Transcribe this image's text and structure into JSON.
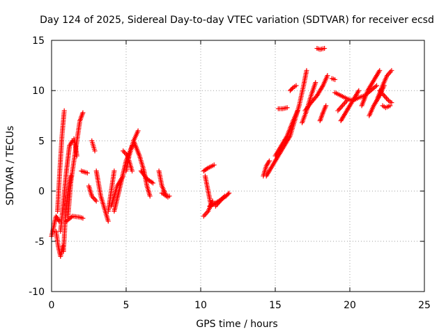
{
  "chart_data": {
    "type": "scatter",
    "title": "Day 124 of 2025, Sidereal Day-to-day VTEC variation (SDTVAR) for receiver ecsd",
    "xlabel": "GPS time / hours",
    "ylabel": "SDTVAR / TECUs",
    "xlim": [
      0,
      25
    ],
    "ylim": [
      -10,
      15
    ],
    "xticks": [
      0,
      5,
      10,
      15,
      20,
      25
    ],
    "yticks": [
      -10,
      -5,
      0,
      5,
      10,
      15
    ],
    "grid": true,
    "marker": "plus",
    "color": "#ff0000",
    "tracks": [
      {
        "x": [
          0.0,
          0.15,
          0.3,
          0.5
        ],
        "y": [
          -4.5,
          -3.5,
          -2.5,
          -3.0
        ]
      },
      {
        "x": [
          0.3,
          0.45,
          0.6,
          0.75
        ],
        "y": [
          -4.0,
          -5.5,
          -6.5,
          -5.5
        ]
      },
      {
        "x": [
          0.4,
          0.55,
          0.7,
          0.85
        ],
        "y": [
          -2.0,
          2.0,
          5.5,
          8.0
        ]
      },
      {
        "x": [
          0.6,
          0.8,
          1.0,
          1.2,
          1.4
        ],
        "y": [
          -4.0,
          -1.0,
          2.0,
          4.5,
          5.0
        ]
      },
      {
        "x": [
          0.8,
          0.95,
          1.1,
          1.3
        ],
        "y": [
          -6.0,
          -2.0,
          0.0,
          1.5
        ]
      },
      {
        "x": [
          1.1,
          1.3,
          1.6,
          1.9,
          2.1
        ],
        "y": [
          -2.5,
          1.0,
          4.0,
          7.0,
          7.8
        ]
      },
      {
        "x": [
          1.0,
          1.4,
          1.9,
          2.1
        ],
        "y": [
          -3.0,
          -2.5,
          -2.6,
          -2.7
        ]
      },
      {
        "x": [
          1.5,
          1.6,
          1.7
        ],
        "y": [
          5.2,
          4.5,
          3.5
        ]
      },
      {
        "x": [
          2.0,
          2.2,
          2.4
        ],
        "y": [
          2.0,
          1.9,
          1.8
        ]
      },
      {
        "x": [
          2.7,
          2.8,
          2.9
        ],
        "y": [
          5.0,
          4.5,
          4.0
        ]
      },
      {
        "x": [
          2.5,
          2.7,
          3.0
        ],
        "y": [
          0.5,
          -0.5,
          -1.0
        ]
      },
      {
        "x": [
          3.0,
          3.3,
          3.6,
          3.8
        ],
        "y": [
          2.0,
          -0.5,
          -2.0,
          -3.0
        ]
      },
      {
        "x": [
          3.8,
          4.0,
          4.2
        ],
        "y": [
          -2.0,
          0.0,
          2.0
        ]
      },
      {
        "x": [
          4.0,
          4.2,
          4.4,
          4.6,
          4.8
        ],
        "y": [
          -1.5,
          -0.5,
          0.5,
          1.0,
          1.5
        ]
      },
      {
        "x": [
          4.2,
          4.6,
          5.0,
          5.4
        ],
        "y": [
          -2.0,
          0.5,
          3.0,
          4.5
        ]
      },
      {
        "x": [
          5.0,
          5.2,
          5.5,
          5.8
        ],
        "y": [
          2.0,
          3.5,
          5.0,
          6.0
        ]
      },
      {
        "x": [
          4.8,
          5.1,
          5.4
        ],
        "y": [
          4.0,
          3.5,
          2.0
        ]
      },
      {
        "x": [
          5.5,
          5.9,
          6.2,
          6.4,
          6.6
        ],
        "y": [
          5.0,
          3.5,
          2.0,
          0.5,
          -0.5
        ]
      },
      {
        "x": [
          6.0,
          6.4,
          6.8
        ],
        "y": [
          2.0,
          1.2,
          0.8
        ]
      },
      {
        "x": [
          7.2,
          7.4,
          7.7,
          7.9
        ],
        "y": [
          2.0,
          0.5,
          -0.5,
          -0.5
        ]
      },
      {
        "x": [
          7.4,
          7.6,
          7.8
        ],
        "y": [
          -0.2,
          -0.4,
          -0.6
        ]
      },
      {
        "x": [
          10.2,
          10.5,
          10.9
        ],
        "y": [
          2.0,
          2.3,
          2.6
        ]
      },
      {
        "x": [
          10.3,
          10.5,
          10.7
        ],
        "y": [
          1.5,
          0.0,
          -1.5
        ]
      },
      {
        "x": [
          10.2,
          10.5,
          10.8
        ],
        "y": [
          -2.5,
          -2.0,
          -1.0
        ]
      },
      {
        "x": [
          10.6,
          11.0,
          11.4,
          11.7,
          11.9
        ],
        "y": [
          -1.5,
          -1.2,
          -0.8,
          -0.5,
          -0.2
        ]
      },
      {
        "x": [
          11.0,
          11.3,
          11.6
        ],
        "y": [
          -1.5,
          -1.0,
          -0.5
        ]
      },
      {
        "x": [
          14.2,
          14.4,
          14.6
        ],
        "y": [
          1.5,
          2.5,
          3.0
        ]
      },
      {
        "x": [
          14.4,
          14.8,
          15.2,
          15.6,
          16.0,
          16.3
        ],
        "y": [
          1.5,
          2.5,
          3.5,
          4.5,
          5.5,
          7.0
        ]
      },
      {
        "x": [
          15.0,
          15.4,
          15.8,
          16.2,
          16.5
        ],
        "y": [
          3.5,
          4.5,
          5.5,
          7.0,
          8.0
        ]
      },
      {
        "x": [
          15.2,
          15.5,
          15.8
        ],
        "y": [
          8.2,
          8.2,
          8.3
        ]
      },
      {
        "x": [
          16.0,
          16.2,
          16.4
        ],
        "y": [
          10.0,
          10.3,
          10.5
        ]
      },
      {
        "x": [
          16.3,
          16.6,
          16.9,
          17.1
        ],
        "y": [
          7.0,
          8.5,
          10.5,
          12.0
        ]
      },
      {
        "x": [
          16.8,
          17.1,
          17.4,
          17.7
        ],
        "y": [
          6.8,
          8.0,
          9.5,
          10.8
        ]
      },
      {
        "x": [
          17.0,
          17.4,
          17.8,
          18.2,
          18.5
        ],
        "y": [
          8.0,
          8.8,
          9.5,
          10.5,
          11.5
        ]
      },
      {
        "x": [
          17.8,
          18.0,
          18.3
        ],
        "y": [
          14.2,
          14.1,
          14.2
        ]
      },
      {
        "x": [
          18.0,
          18.2,
          18.4
        ],
        "y": [
          7.0,
          7.8,
          8.5
        ]
      },
      {
        "x": [
          18.8,
          19.0
        ],
        "y": [
          11.2,
          11.1
        ]
      },
      {
        "x": [
          19.0,
          19.4,
          19.8,
          20.2
        ],
        "y": [
          9.8,
          9.5,
          9.2,
          9.0
        ]
      },
      {
        "x": [
          19.2,
          19.5,
          19.8
        ],
        "y": [
          8.0,
          8.5,
          9.0
        ]
      },
      {
        "x": [
          19.4,
          19.8,
          20.2,
          20.6
        ],
        "y": [
          7.0,
          8.0,
          9.0,
          10.0
        ]
      },
      {
        "x": [
          20.2,
          20.6,
          21.0,
          21.4,
          21.8
        ],
        "y": [
          9.0,
          9.3,
          9.5,
          10.0,
          10.5
        ]
      },
      {
        "x": [
          20.8,
          21.2,
          21.6,
          22.0
        ],
        "y": [
          8.5,
          10.0,
          11.0,
          12.0
        ]
      },
      {
        "x": [
          21.3,
          21.6,
          22.0,
          22.3
        ],
        "y": [
          7.5,
          8.5,
          9.5,
          10.5
        ]
      },
      {
        "x": [
          21.8,
          22.2,
          22.5,
          22.8
        ],
        "y": [
          9.0,
          10.5,
          11.5,
          12.0
        ]
      },
      {
        "x": [
          22.0,
          22.3,
          22.6,
          22.8
        ],
        "y": [
          10.0,
          9.5,
          9.0,
          8.8
        ]
      },
      {
        "x": [
          22.2,
          22.4,
          22.7
        ],
        "y": [
          8.5,
          8.3,
          8.5
        ]
      }
    ]
  }
}
